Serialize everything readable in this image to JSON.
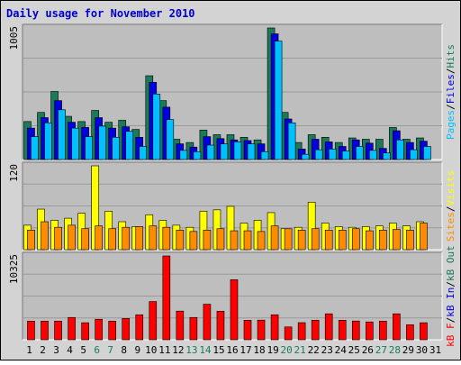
{
  "title": "Daily usage for November 2010",
  "colors": {
    "frame_bg": "#d3d3d3",
    "plot_bg": "#bebebe",
    "grid": "#9a9a9a",
    "title": "#0000cc",
    "hits": "#1b7a57",
    "files": "#0000e0",
    "pages": "#00c0ff",
    "visits": "#ffff00",
    "sites": "#ff8c00",
    "kb_in": "#ff0000",
    "weekend_label": "#1b7a57",
    "day_label": "#000000"
  },
  "chart_data": [
    {
      "type": "bar",
      "name": "hits-files-pages",
      "ymax_label": "1005",
      "ylim": [
        0,
        1005
      ],
      "legend": [
        {
          "key": "pages",
          "label": "Pages"
        },
        {
          "key": "sep",
          "label": "/"
        },
        {
          "key": "files",
          "label": "Files"
        },
        {
          "key": "sep",
          "label": "/"
        },
        {
          "key": "hits",
          "label": "Hits"
        }
      ],
      "series": [
        {
          "key": "hits",
          "values": [
            290,
            360,
            520,
            330,
            290,
            375,
            285,
            300,
            230,
            640,
            450,
            155,
            130,
            225,
            190,
            190,
            170,
            150,
            1005,
            360,
            130,
            190,
            170,
            130,
            165,
            155,
            155,
            245,
            155,
            165
          ]
        },
        {
          "key": "files",
          "values": [
            240,
            320,
            450,
            285,
            245,
            320,
            240,
            250,
            170,
            590,
            400,
            120,
            95,
            175,
            160,
            150,
            145,
            120,
            960,
            310,
            80,
            155,
            135,
            100,
            150,
            125,
            85,
            220,
            130,
            140
          ]
        },
        {
          "key": "pages",
          "values": [
            175,
            280,
            380,
            240,
            175,
            255,
            170,
            215,
            100,
            500,
            305,
            70,
            60,
            110,
            120,
            135,
            120,
            60,
            905,
            280,
            40,
            75,
            80,
            65,
            100,
            70,
            50,
            150,
            75,
            100
          ]
        }
      ]
    },
    {
      "type": "bar",
      "name": "visits-sites",
      "ymax_label": "120",
      "ylim": [
        0,
        120
      ],
      "legend": [
        {
          "key": "sites",
          "label": "Sites"
        },
        {
          "key": "sep",
          "label": "/"
        },
        {
          "key": "visits",
          "label": "Visits"
        }
      ],
      "series": [
        {
          "key": "visits",
          "values": [
            35,
            58,
            42,
            45,
            52,
            120,
            55,
            40,
            33,
            50,
            42,
            35,
            32,
            55,
            57,
            62,
            38,
            42,
            53,
            30,
            32,
            68,
            38,
            33,
            32,
            33,
            34,
            38,
            34,
            40
          ]
        },
        {
          "key": "sites",
          "values": [
            28,
            40,
            32,
            35,
            30,
            34,
            30,
            32,
            33,
            34,
            32,
            28,
            26,
            28,
            30,
            27,
            27,
            26,
            34,
            30,
            28,
            30,
            28,
            28,
            30,
            27,
            28,
            29,
            28,
            38
          ]
        }
      ]
    },
    {
      "type": "bar",
      "name": "kbytes",
      "ymax_label": "10325",
      "ylim": [
        0,
        10325
      ],
      "legend": [
        {
          "key": "kb_in",
          "label": "kB F"
        },
        {
          "key": "sep",
          "label": "/"
        },
        {
          "key": "files",
          "label": "kB In"
        },
        {
          "key": "sep",
          "label": "/"
        },
        {
          "key": "hits",
          "label": "kB Out"
        }
      ],
      "series": [
        {
          "key": "kb_in",
          "values": [
            2300,
            2300,
            2300,
            2750,
            2100,
            2530,
            2300,
            2630,
            3080,
            4710,
            10325,
            3530,
            2750,
            4380,
            3520,
            7400,
            2400,
            2420,
            3080,
            1580,
            2110,
            2410,
            3200,
            2410,
            2310,
            2200,
            2300,
            3200,
            1850,
            2100
          ]
        }
      ]
    }
  ],
  "x_labels": [
    "1",
    "2",
    "3",
    "4",
    "5",
    "6",
    "7",
    "8",
    "9",
    "10",
    "11",
    "12",
    "13",
    "14",
    "15",
    "16",
    "17",
    "18",
    "19",
    "20",
    "21",
    "22",
    "23",
    "24",
    "25",
    "26",
    "27",
    "28",
    "29",
    "30",
    "31"
  ],
  "weekend_days": [
    6,
    7,
    13,
    14,
    20,
    21,
    27,
    28
  ]
}
